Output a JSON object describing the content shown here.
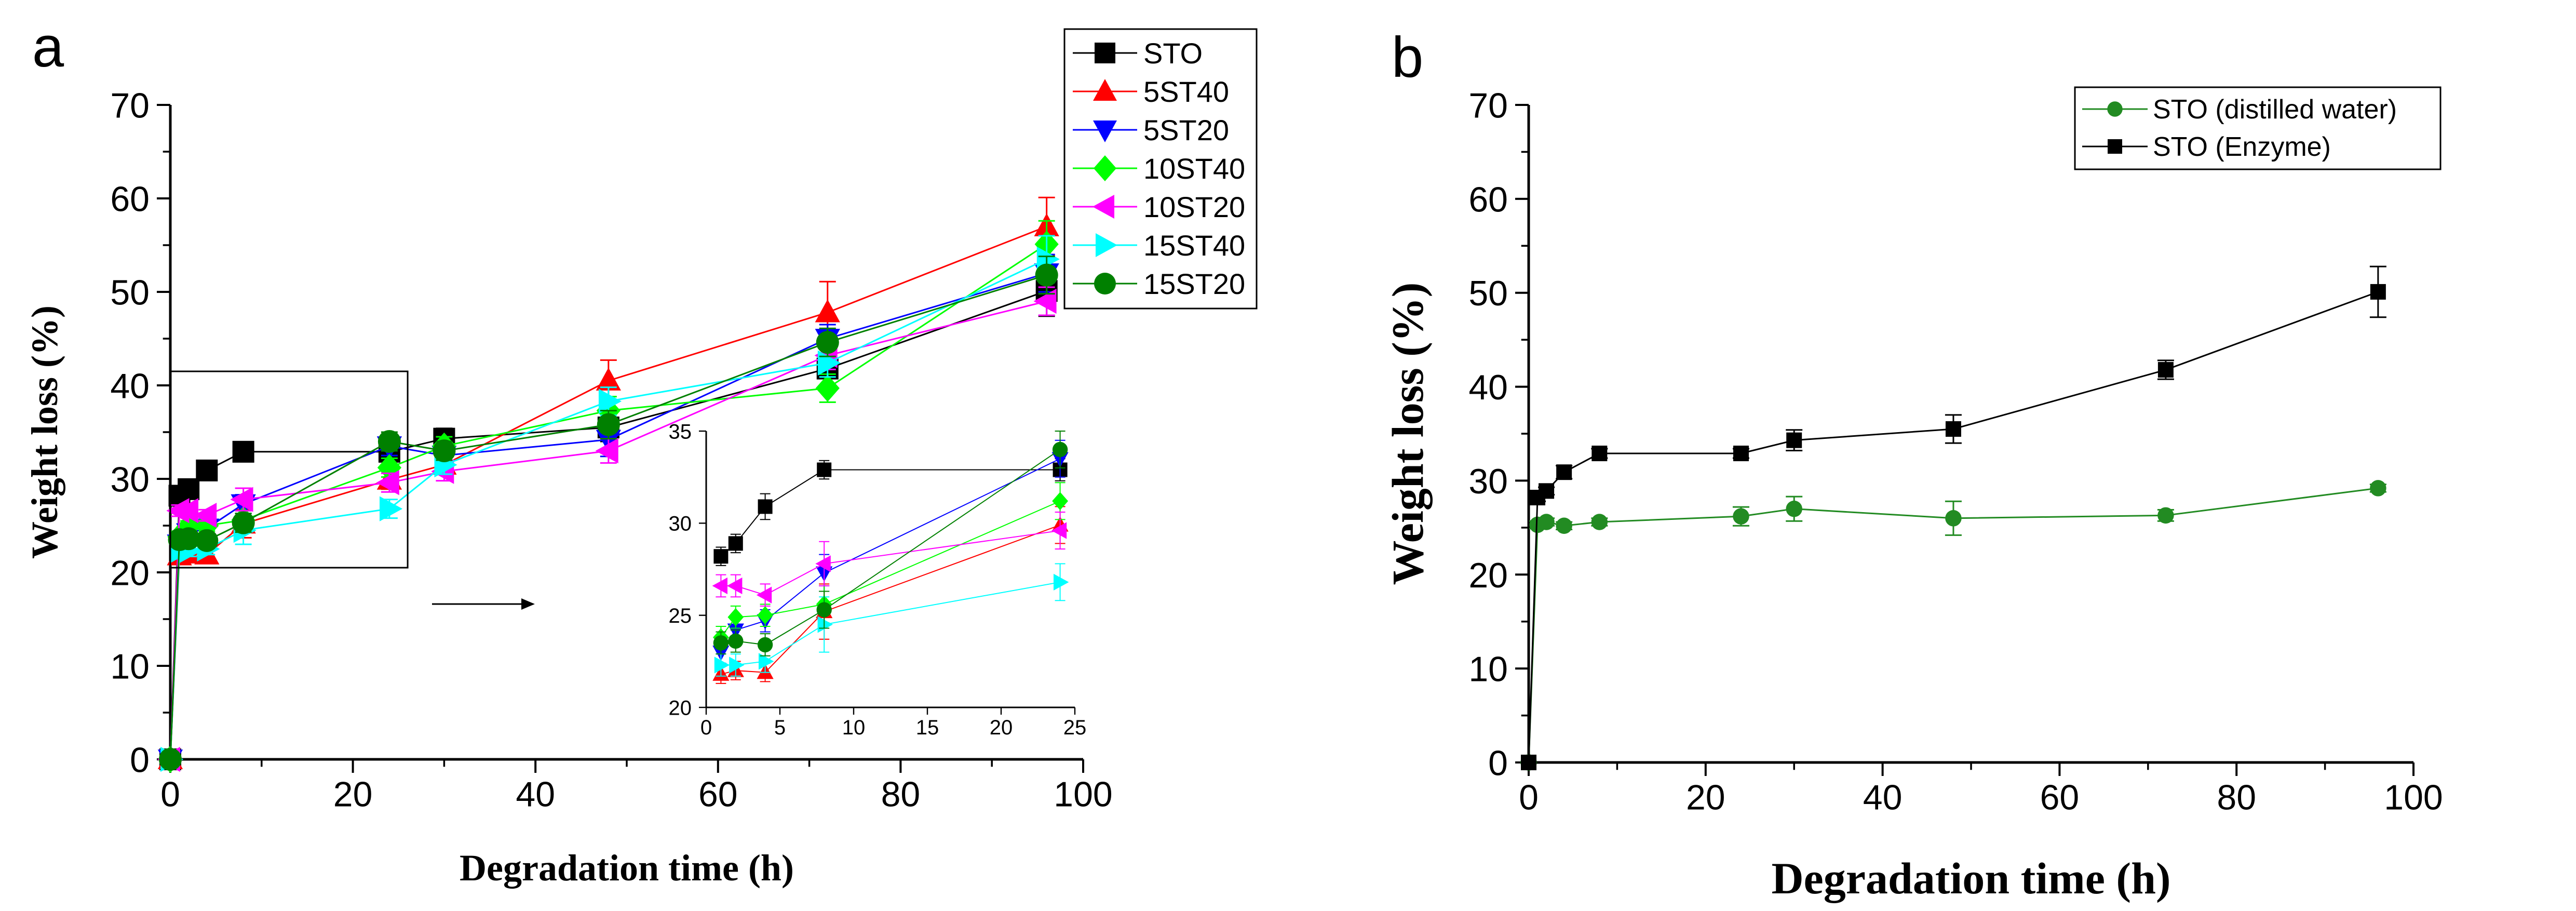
{
  "figure": {
    "panel_a_label": "a",
    "panel_b_label": "b"
  },
  "chart_data": [
    {
      "id": "a",
      "type": "line",
      "xlabel": "Degradation time (h)",
      "ylabel": "Weight loss (%)",
      "xlim": [
        0,
        100
      ],
      "ylim": [
        0,
        70
      ],
      "xticks": [
        0,
        20,
        40,
        60,
        80,
        100
      ],
      "yticks": [
        0,
        10,
        20,
        30,
        40,
        50,
        60,
        70
      ],
      "legend_position": "top-right",
      "grid": false,
      "series": [
        {
          "name": "STO",
          "color": "#000000",
          "marker": "square",
          "x": [
            0,
            1,
            2,
            4,
            8,
            24,
            30,
            48,
            72,
            96
          ],
          "y": [
            0,
            28.2,
            28.9,
            30.9,
            32.9,
            32.9,
            34.3,
            35.5,
            41.8,
            50.1
          ],
          "err": [
            0,
            0.5,
            0.5,
            0.7,
            0.5,
            0.6,
            1.1,
            1.5,
            1.0,
            2.7
          ]
        },
        {
          "name": "5ST40",
          "color": "#ff0000",
          "marker": "triangle-up",
          "x": [
            0,
            1,
            2,
            4,
            8,
            24,
            30,
            48,
            72,
            96
          ],
          "y": [
            0,
            21.8,
            22.0,
            21.9,
            25.2,
            29.9,
            31.5,
            40.5,
            47.8,
            57.0
          ],
          "err": [
            0,
            0.5,
            0.5,
            0.5,
            1.5,
            1.0,
            1.0,
            2.2,
            3.3,
            3.1
          ]
        },
        {
          "name": "5ST20",
          "color": "#0000ff",
          "marker": "triangle-down",
          "x": [
            0,
            1,
            2,
            4,
            8,
            24,
            30,
            48,
            72,
            96
          ],
          "y": [
            0,
            23.0,
            24.2,
            24.7,
            27.3,
            33.5,
            32.5,
            34.2,
            45.0,
            52.0
          ],
          "err": [
            0,
            0.6,
            0.6,
            0.6,
            1.0,
            1.0,
            1.0,
            1.8,
            1.5,
            2.0
          ]
        },
        {
          "name": "10ST40",
          "color": "#00ff00",
          "marker": "diamond",
          "x": [
            0,
            1,
            2,
            4,
            8,
            24,
            30,
            48,
            72,
            96
          ],
          "y": [
            0,
            23.8,
            24.9,
            25.0,
            25.6,
            31.2,
            33.5,
            37.3,
            39.7,
            55.1
          ],
          "err": [
            0,
            0.6,
            0.6,
            0.6,
            1.0,
            1.0,
            1.0,
            1.5,
            1.5,
            2.5
          ]
        },
        {
          "name": "10ST20",
          "color": "#ff00ff",
          "marker": "triangle-left",
          "x": [
            0,
            1,
            2,
            4,
            8,
            24,
            30,
            48,
            72,
            96
          ],
          "y": [
            0,
            26.6,
            26.6,
            26.1,
            27.8,
            29.6,
            30.8,
            33.0,
            43.2,
            49.0
          ],
          "err": [
            0,
            0.6,
            0.6,
            0.6,
            1.2,
            1.0,
            1.0,
            1.3,
            1.5,
            1.5
          ]
        },
        {
          "name": "15ST40",
          "color": "#00ffff",
          "marker": "triangle-right",
          "x": [
            0,
            1,
            2,
            4,
            8,
            24,
            30,
            48,
            72,
            96
          ],
          "y": [
            0,
            22.3,
            22.3,
            22.5,
            24.5,
            26.8,
            31.5,
            38.3,
            42.4,
            53.5
          ],
          "err": [
            0,
            0.6,
            0.6,
            0.6,
            1.5,
            1.0,
            1.0,
            1.5,
            1.5,
            2.5
          ]
        },
        {
          "name": "15ST20",
          "color": "#008000",
          "marker": "circle",
          "x": [
            0,
            1,
            2,
            4,
            8,
            24,
            30,
            48,
            72,
            96
          ],
          "y": [
            0,
            23.5,
            23.6,
            23.4,
            25.3,
            34.0,
            33.0,
            35.8,
            44.6,
            51.8
          ],
          "err": [
            0,
            0.6,
            0.6,
            0.6,
            1.0,
            1.0,
            1.0,
            1.5,
            1.5,
            2.0
          ]
        }
      ],
      "inset": {
        "xlim": [
          0,
          25
        ],
        "ylim": [
          20,
          35
        ],
        "xticks": [
          0,
          5,
          10,
          15,
          20,
          25
        ],
        "yticks": [
          20,
          25,
          30,
          35
        ],
        "zoom_box_x": [
          0,
          26
        ],
        "zoom_box_y": [
          20.5,
          41.5
        ]
      }
    },
    {
      "id": "b",
      "type": "line",
      "xlabel": "Degradation time (h)",
      "ylabel": "Weight loss (%)",
      "xlim": [
        0,
        100
      ],
      "ylim": [
        0,
        70
      ],
      "xticks": [
        0,
        20,
        40,
        60,
        80,
        100
      ],
      "yticks": [
        0,
        10,
        20,
        30,
        40,
        50,
        60,
        70
      ],
      "legend_position": "top-right",
      "grid": false,
      "series": [
        {
          "name": "STO (distilled water)",
          "color": "#228B22",
          "marker": "circle",
          "x": [
            0,
            1,
            2,
            4,
            8,
            24,
            30,
            48,
            72,
            96
          ],
          "y": [
            0,
            25.3,
            25.6,
            25.2,
            25.6,
            26.2,
            27.0,
            26.0,
            26.3,
            29.2
          ],
          "err": [
            0,
            0.4,
            0.4,
            0.4,
            0.4,
            1.0,
            1.3,
            1.8,
            0.6,
            0.4
          ]
        },
        {
          "name": "STO (Enzyme)",
          "color": "#000000",
          "marker": "square",
          "x": [
            0,
            1,
            2,
            4,
            8,
            24,
            30,
            48,
            72,
            96
          ],
          "y": [
            0,
            28.2,
            28.9,
            30.9,
            32.9,
            32.9,
            34.3,
            35.5,
            41.8,
            50.1
          ],
          "err": [
            0,
            0.4,
            0.4,
            0.7,
            0.5,
            0.5,
            1.1,
            1.5,
            1.0,
            2.7
          ]
        }
      ]
    }
  ]
}
